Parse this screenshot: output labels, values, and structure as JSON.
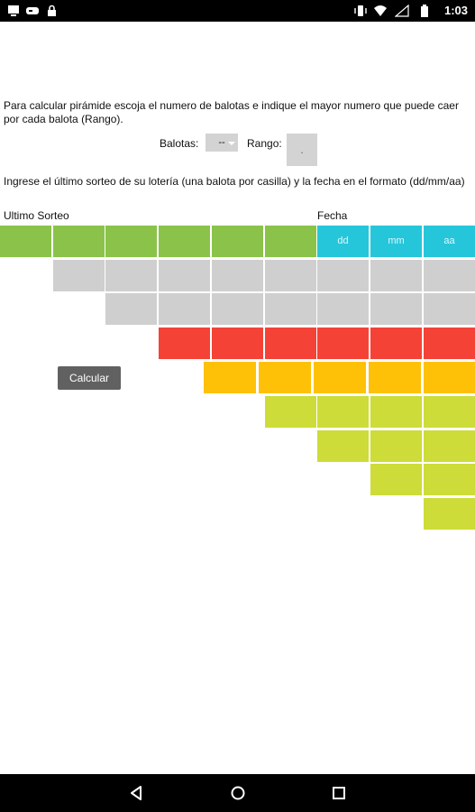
{
  "status_bar": {
    "time": "1:03"
  },
  "instructions": {
    "line1": "Para calcular pirámide escoja el numero de balotas e indique el mayor numero que puede caer por cada balota (Rango).",
    "line2": "Ingrese el último sorteo de su lotería (una balota por casilla) y la fecha en el formato (dd/mm/aa)"
  },
  "balotas": {
    "label": "Balotas:",
    "value": "--"
  },
  "rango": {
    "label": "Rango:",
    "value": "."
  },
  "ultimo_sorteo_label": "Ultimo Sorteo",
  "fecha_label": "Fecha",
  "date_fields": {
    "day_placeholder": "dd",
    "month_placeholder": "mm",
    "year_placeholder": "aa"
  },
  "calcular_label": "Calcular",
  "colors": {
    "green": "#8bc34a",
    "blue": "#26c6da",
    "gray": "#cfcfcf",
    "red": "#f44336",
    "orange": "#ffc107",
    "lime": "#cddc39"
  }
}
